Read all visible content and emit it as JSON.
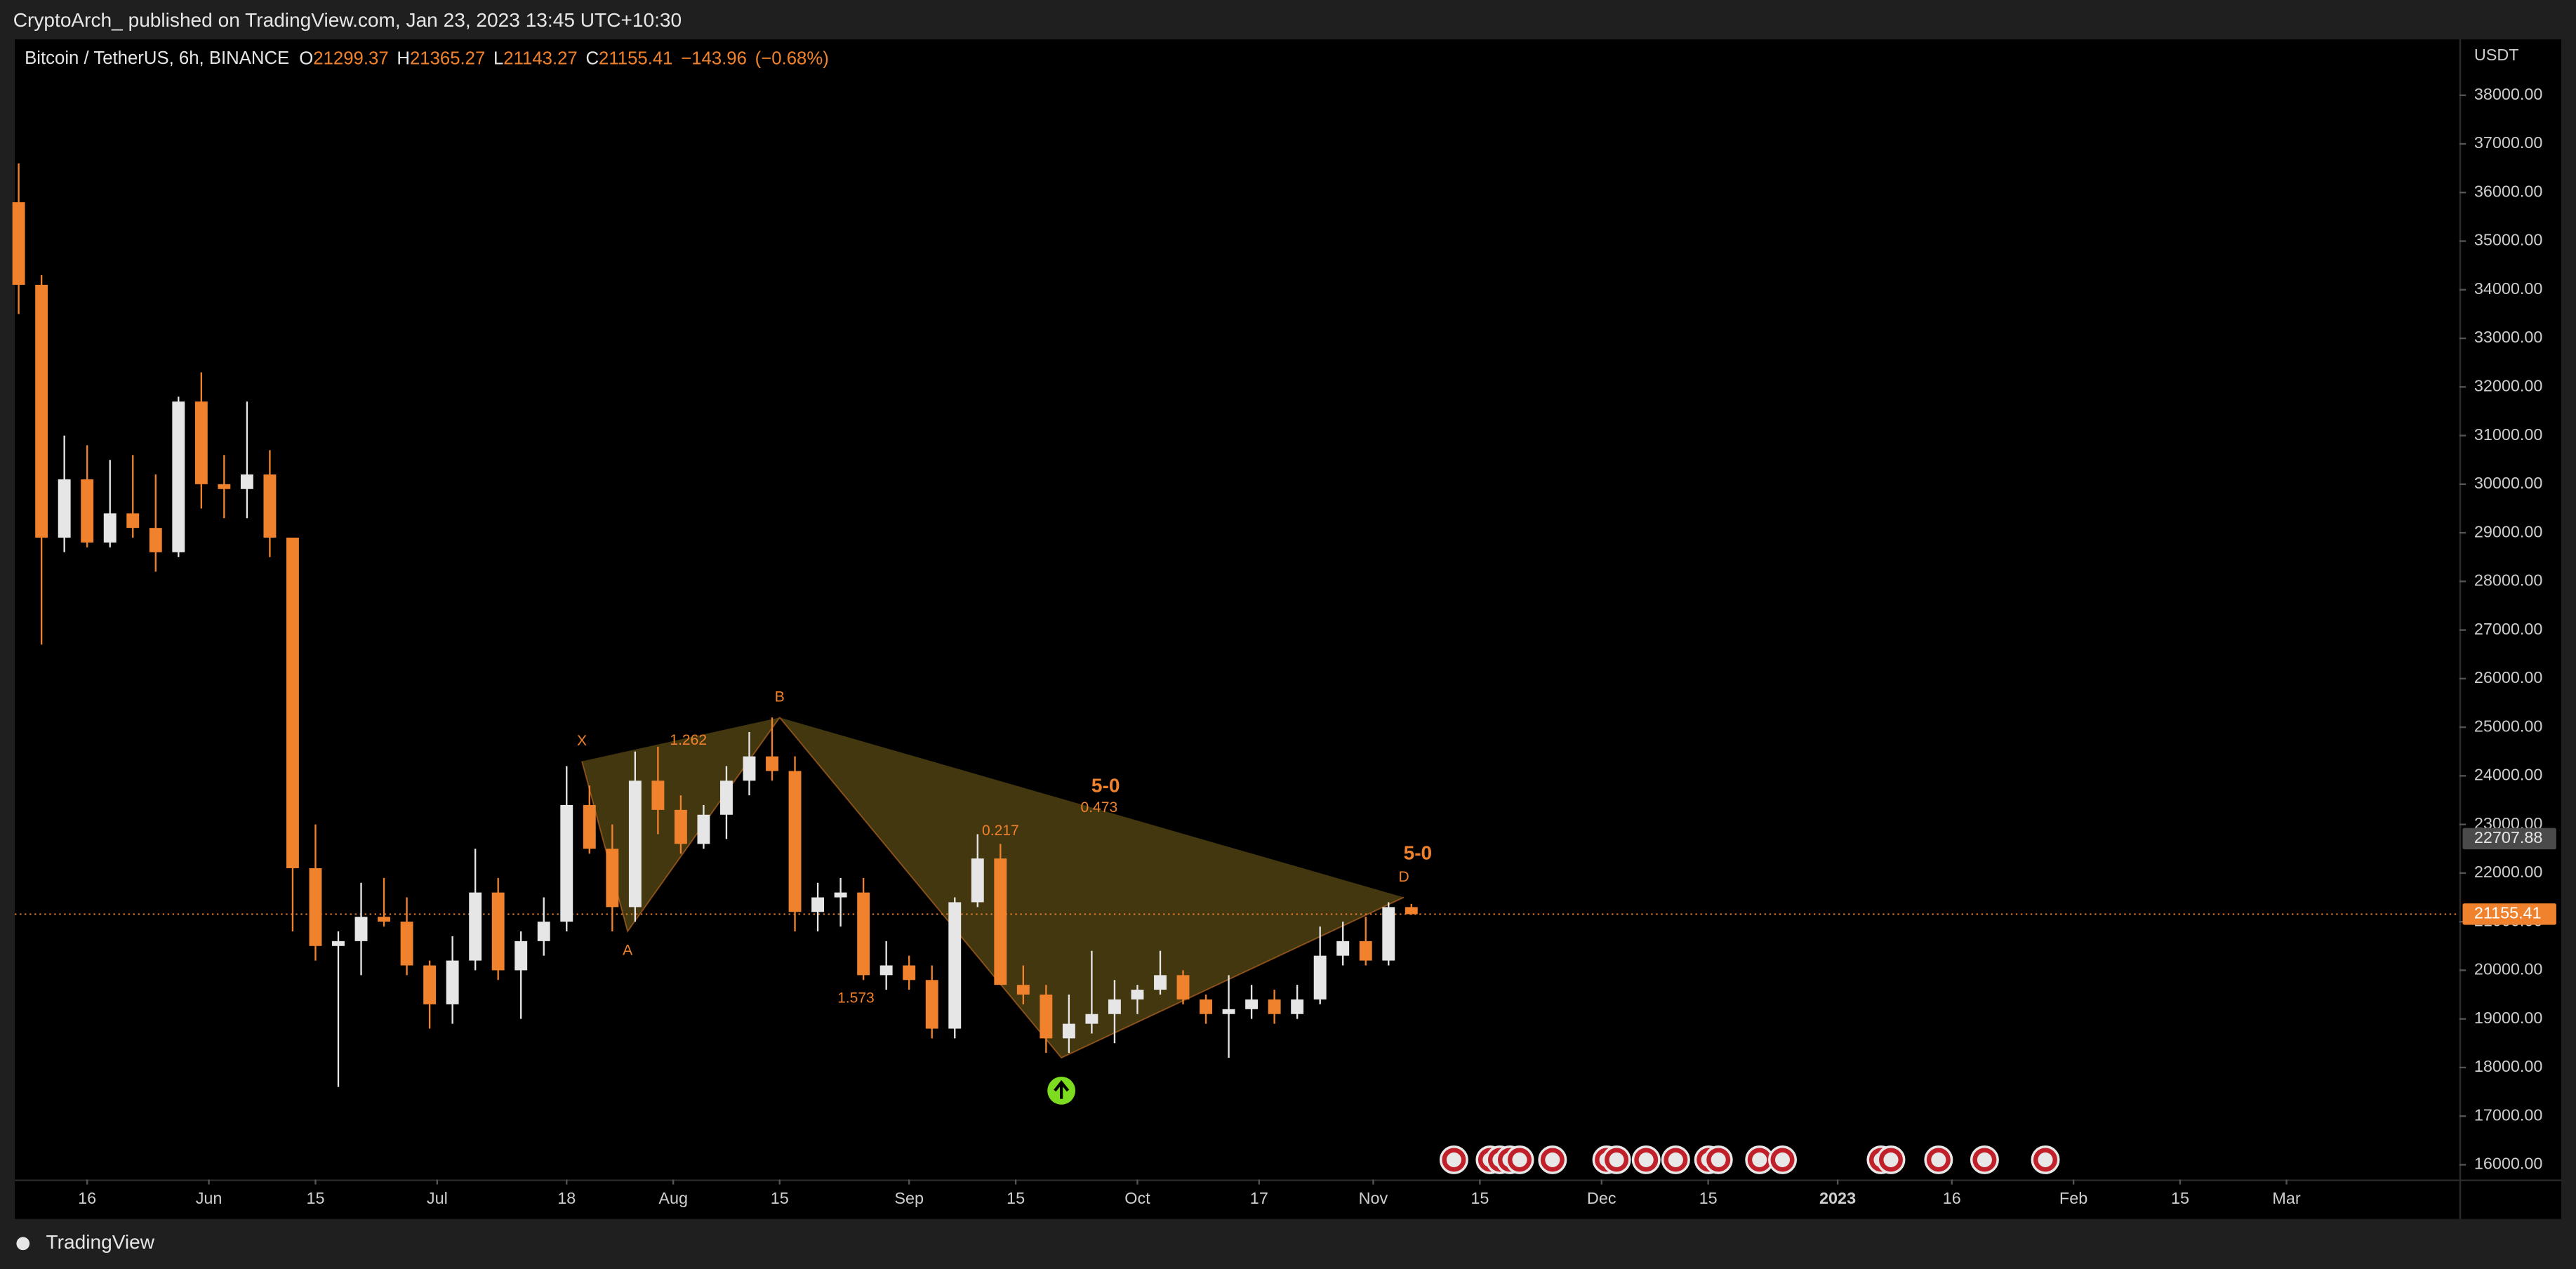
{
  "header": "CryptoArch_ published on TradingView.com, Jan 23, 2023 13:45 UTC+10:30",
  "footer_brand": "TradingView",
  "chart_data": {
    "type": "candlestick",
    "title": "Bitcoin / TetherUS, 6h, BINANCE",
    "ohlc": [
      {
        "label": "O",
        "value": 21299.37
      },
      {
        "label": "H",
        "value": 21365.27
      },
      {
        "label": "L",
        "value": 21143.27
      },
      {
        "label": "C",
        "value": 21155.41
      }
    ],
    "change": {
      "value": -143.96,
      "label": "−143.96"
    },
    "change_pct": {
      "value": -0.68,
      "label": "(−0.68%)"
    },
    "y_unit": "USDT",
    "up_color": "#e6e6e6",
    "down_color": "#f0822d",
    "x": [
      0,
      1,
      2,
      3,
      4,
      5,
      6,
      7,
      8,
      9,
      10,
      11,
      12,
      13,
      14,
      15,
      16,
      17,
      18,
      19,
      20,
      21,
      22,
      23,
      24,
      25,
      26,
      27,
      28,
      29,
      30,
      31,
      32,
      33,
      34,
      35,
      36,
      37,
      38,
      39,
      40,
      41,
      42,
      43,
      44,
      45,
      46,
      47,
      48,
      49,
      50,
      51,
      52,
      53,
      54,
      55,
      56,
      57,
      58,
      59,
      60,
      61
    ],
    "open": [
      35800,
      34100,
      28900,
      30100,
      28800,
      29400,
      29100,
      28600,
      31700,
      30000,
      29900,
      30200,
      28900,
      22100,
      20500,
      20600,
      21100,
      21000,
      20100,
      19300,
      20200,
      21600,
      20000,
      20600,
      21000,
      23400,
      22500,
      21300,
      23900,
      23300,
      22600,
      23200,
      23900,
      24400,
      24100,
      21200,
      21500,
      21600,
      19900,
      20100,
      19800,
      18800,
      21400,
      22300,
      19700,
      19500,
      18600,
      18900,
      19100,
      19400,
      19600,
      19900,
      19400,
      19100,
      19200,
      19400,
      19100,
      19400,
      20300,
      20600,
      20200,
      21300
    ],
    "high": [
      36600,
      34300,
      31000,
      30800,
      30500,
      30600,
      30200,
      31800,
      32300,
      30600,
      31700,
      30700,
      28900,
      23000,
      20800,
      21800,
      21900,
      21500,
      20200,
      20700,
      22500,
      21900,
      20800,
      21500,
      24200,
      23800,
      23000,
      24500,
      24600,
      23600,
      23400,
      24200,
      24900,
      25200,
      24400,
      21800,
      21900,
      21900,
      20600,
      20300,
      20100,
      21500,
      22800,
      22600,
      20100,
      19700,
      19500,
      20400,
      19800,
      19700,
      20400,
      20000,
      19500,
      19900,
      19700,
      19600,
      19700,
      20900,
      21000,
      21100,
      21400,
      21365
    ],
    "low": [
      33500,
      26700,
      28600,
      28700,
      28700,
      28900,
      28200,
      28500,
      29500,
      29300,
      29300,
      28500,
      20800,
      20200,
      17600,
      19900,
      20900,
      19900,
      18800,
      18900,
      20000,
      19800,
      19000,
      20300,
      20800,
      22400,
      20800,
      21000,
      22800,
      22400,
      22500,
      22700,
      23600,
      23900,
      20800,
      20800,
      20900,
      19800,
      19600,
      19600,
      18600,
      18600,
      21300,
      19700,
      19300,
      18300,
      18300,
      18700,
      18500,
      19100,
      19500,
      19300,
      18900,
      18200,
      19000,
      18900,
      19000,
      19300,
      20100,
      20100,
      20100,
      21143
    ],
    "close": [
      34100,
      28900,
      30100,
      28800,
      29400,
      29100,
      28600,
      31700,
      30000,
      29900,
      30200,
      28900,
      22100,
      20500,
      20600,
      21100,
      21000,
      20100,
      19300,
      20200,
      21600,
      20000,
      20600,
      21000,
      23400,
      22500,
      21300,
      23900,
      23300,
      22600,
      23200,
      23900,
      24400,
      24100,
      21200,
      21500,
      21600,
      19900,
      20100,
      19800,
      18800,
      21400,
      22300,
      19700,
      19500,
      18600,
      18900,
      19100,
      19400,
      19600,
      19900,
      19400,
      19100,
      19200,
      19400,
      19100,
      19400,
      20300,
      20600,
      20200,
      21300,
      21155
    ],
    "xlim": [
      -0.17,
      106.9
    ],
    "xticks": [
      {
        "value": 3,
        "label": "16"
      },
      {
        "value": 8.33,
        "label": "Jun"
      },
      {
        "value": 13,
        "label": "15"
      },
      {
        "value": 18.33,
        "label": "Jul"
      },
      {
        "value": 24,
        "label": "18"
      },
      {
        "value": 28.67,
        "label": "Aug"
      },
      {
        "value": 33.33,
        "label": "15"
      },
      {
        "value": 39,
        "label": "Sep"
      },
      {
        "value": 43.67,
        "label": "15"
      },
      {
        "value": 49,
        "label": "Oct"
      },
      {
        "value": 54.33,
        "label": "17"
      },
      {
        "value": 59.33,
        "label": "Nov"
      },
      {
        "value": 64,
        "label": "15"
      },
      {
        "value": 69.33,
        "label": "Dec"
      },
      {
        "value": 74,
        "label": "15"
      },
      {
        "value": 79.67,
        "label": "2023"
      },
      {
        "value": 84.67,
        "label": "16"
      },
      {
        "value": 90,
        "label": "Feb"
      },
      {
        "value": 94.67,
        "label": "15"
      },
      {
        "value": 99.33,
        "label": "Mar"
      }
    ],
    "ylim": [
      15696,
      39149
    ],
    "yticks": [
      {
        "value": 16000,
        "label": "16000.00"
      },
      {
        "value": 17000,
        "label": "17000.00"
      },
      {
        "value": 18000,
        "label": "18000.00"
      },
      {
        "value": 19000,
        "label": "19000.00"
      },
      {
        "value": 20000,
        "label": "20000.00"
      },
      {
        "value": 21000,
        "label": "21000.00"
      },
      {
        "value": 22000,
        "label": "22000.00"
      },
      {
        "value": 23000,
        "label": "23000.00"
      },
      {
        "value": 24000,
        "label": "24000.00"
      },
      {
        "value": 25000,
        "label": "25000.00"
      },
      {
        "value": 26000,
        "label": "26000.00"
      },
      {
        "value": 27000,
        "label": "27000.00"
      },
      {
        "value": 28000,
        "label": "28000.00"
      },
      {
        "value": 29000,
        "label": "29000.00"
      },
      {
        "value": 30000,
        "label": "30000.00"
      },
      {
        "value": 31000,
        "label": "31000.00"
      },
      {
        "value": 32000,
        "label": "32000.00"
      },
      {
        "value": 33000,
        "label": "33000.00"
      },
      {
        "value": 34000,
        "label": "34000.00"
      },
      {
        "value": 35000,
        "label": "35000.00"
      },
      {
        "value": 36000,
        "label": "36000.00"
      },
      {
        "value": 37000,
        "label": "37000.00"
      },
      {
        "value": 38000,
        "label": "38000.00"
      }
    ],
    "last_price": 21155.41,
    "marker_price": 22707.88,
    "pattern": {
      "color": "#f0822d",
      "fill": "#5a4a14",
      "points": [
        {
          "label": "X",
          "x": 24.67,
          "y": 24300
        },
        {
          "label": "A",
          "x": 26.67,
          "y": 20800
        },
        {
          "label": "B",
          "x": 33.33,
          "y": 25200
        },
        {
          "label": null,
          "x": 45.67,
          "y": 18200
        },
        {
          "label": "D",
          "x": 60.67,
          "y": 21500
        }
      ],
      "ratios": [
        1.262,
        1.573,
        0.217,
        0.473
      ],
      "names": [
        "5-0",
        "5-0"
      ]
    }
  }
}
